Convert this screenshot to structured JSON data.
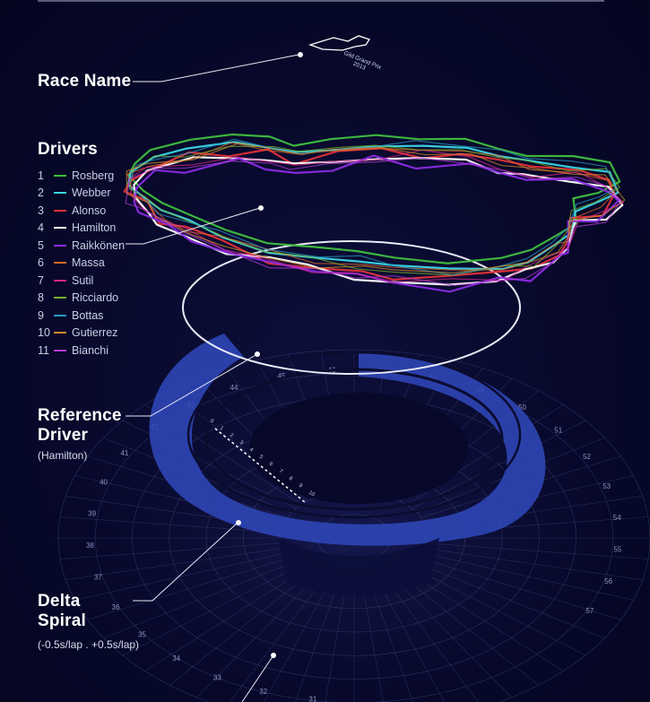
{
  "top_caption": {
    "race_label": "Gild Grand Prix",
    "year": "2013"
  },
  "labels": {
    "race_name": "Race Name",
    "drivers": "Drivers",
    "reference_title": "Reference Driver",
    "reference_sub": "(Hamilton)",
    "delta_title": "Delta Spiral",
    "delta_sub": "(-0.5s/lap . +0.5s/lap)"
  },
  "drivers": [
    {
      "num": "1",
      "name": "Rosberg",
      "color": "#3fbf3f"
    },
    {
      "num": "2",
      "name": "Webber",
      "color": "#3ad6e6"
    },
    {
      "num": "3",
      "name": "Alonso",
      "color": "#e0303a"
    },
    {
      "num": "4",
      "name": "Hamilton",
      "color": "#ffffff"
    },
    {
      "num": "5",
      "name": "Raikkönen",
      "color": "#8a2be2"
    },
    {
      "num": "6",
      "name": "Massa",
      "color": "#e06a2a"
    },
    {
      "num": "7",
      "name": "Sutil",
      "color": "#d8258a"
    },
    {
      "num": "8",
      "name": "Ricciardo",
      "color": "#7ab02a"
    },
    {
      "num": "9",
      "name": "Bottas",
      "color": "#2a9ac0"
    },
    {
      "num": "10",
      "name": "Gutierrez",
      "color": "#d08a2a"
    },
    {
      "num": "11",
      "name": "Bianchi",
      "color": "#b03ad0"
    }
  ],
  "lap_ticks_inner": [
    "0",
    "1",
    "2",
    "3",
    "4",
    "5",
    "6",
    "7",
    "8",
    "9",
    "10"
  ],
  "lap_ticks_outer": [
    "31",
    "32",
    "33",
    "34",
    "35",
    "36",
    "37",
    "38",
    "39",
    "40",
    "41",
    "42",
    "43",
    "44",
    "45",
    "46",
    "47",
    "48",
    "49",
    "50",
    "51",
    "52",
    "53",
    "54",
    "55",
    "56",
    "57"
  ],
  "colors": {
    "spiral": "#3a56c8",
    "background": "#07082a",
    "grid": "#3a4070"
  }
}
